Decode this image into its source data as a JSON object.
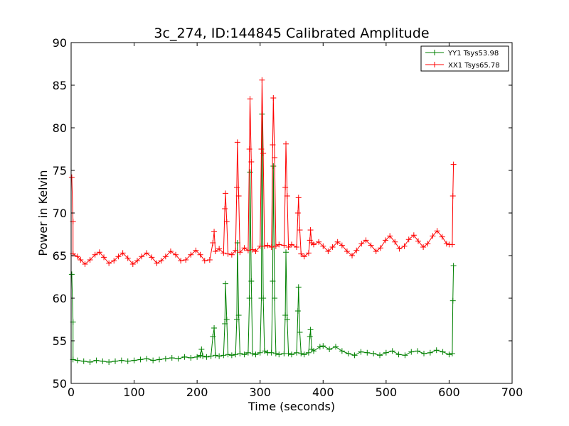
{
  "chart_data": {
    "type": "line",
    "title": "3c_274, ID:144845 Calibrated Amplitude",
    "xlabel": "Time (seconds)",
    "ylabel": "Power in Kelvin",
    "xlim": [
      0,
      700
    ],
    "ylim": [
      50,
      90
    ],
    "xticks": [
      0,
      100,
      200,
      300,
      400,
      500,
      600,
      700
    ],
    "yticks": [
      50,
      55,
      60,
      65,
      70,
      75,
      80,
      85,
      90
    ],
    "legend_position": "top-right",
    "marker": "+",
    "series": [
      {
        "name": "YY1 Tsys53.98",
        "color": "#008000",
        "points": [
          [
            1,
            62.8
          ],
          [
            3,
            57.2
          ],
          [
            3,
            52.8
          ],
          [
            10,
            52.7
          ],
          [
            20,
            52.6
          ],
          [
            30,
            52.5
          ],
          [
            40,
            52.7
          ],
          [
            50,
            52.6
          ],
          [
            60,
            52.5
          ],
          [
            70,
            52.6
          ],
          [
            80,
            52.7
          ],
          [
            90,
            52.6
          ],
          [
            100,
            52.7
          ],
          [
            110,
            52.8
          ],
          [
            120,
            52.9
          ],
          [
            130,
            52.7
          ],
          [
            140,
            52.8
          ],
          [
            150,
            52.9
          ],
          [
            160,
            53.0
          ],
          [
            170,
            52.9
          ],
          [
            180,
            53.1
          ],
          [
            190,
            53.0
          ],
          [
            200,
            53.1
          ],
          [
            205,
            53.3
          ],
          [
            207,
            54.0
          ],
          [
            209,
            53.2
          ],
          [
            215,
            53.1
          ],
          [
            222,
            53.2
          ],
          [
            225,
            55.5
          ],
          [
            227,
            56.5
          ],
          [
            229,
            53.3
          ],
          [
            235,
            53.2
          ],
          [
            242,
            53.3
          ],
          [
            244,
            57.0
          ],
          [
            245,
            61.7
          ],
          [
            247,
            57.5
          ],
          [
            249,
            53.4
          ],
          [
            255,
            53.3
          ],
          [
            261,
            53.4
          ],
          [
            263,
            57.5
          ],
          [
            264,
            66.5
          ],
          [
            266,
            58.0
          ],
          [
            268,
            53.5
          ],
          [
            275,
            53.4
          ],
          [
            281,
            53.6
          ],
          [
            283,
            60.0
          ],
          [
            284,
            74.8
          ],
          [
            286,
            62.0
          ],
          [
            288,
            53.5
          ],
          [
            293,
            53.4
          ],
          [
            300,
            53.6
          ],
          [
            302,
            60.0
          ],
          [
            303,
            81.6
          ],
          [
            305,
            60.0
          ],
          [
            307,
            53.8
          ],
          [
            312,
            53.6
          ],
          [
            318,
            53.6
          ],
          [
            320,
            62.0
          ],
          [
            321,
            75.5
          ],
          [
            323,
            60.0
          ],
          [
            325,
            53.5
          ],
          [
            330,
            53.4
          ],
          [
            338,
            53.5
          ],
          [
            340,
            58.0
          ],
          [
            341,
            65.4
          ],
          [
            343,
            57.5
          ],
          [
            345,
            53.5
          ],
          [
            350,
            53.4
          ],
          [
            358,
            53.6
          ],
          [
            360,
            58.5
          ],
          [
            361,
            61.3
          ],
          [
            363,
            56.0
          ],
          [
            365,
            53.5
          ],
          [
            370,
            53.4
          ],
          [
            377,
            53.6
          ],
          [
            379,
            55.5
          ],
          [
            380,
            56.3
          ],
          [
            382,
            54.0
          ],
          [
            385,
            53.8
          ],
          [
            395,
            54.3
          ],
          [
            400,
            54.4
          ],
          [
            410,
            54.0
          ],
          [
            420,
            54.3
          ],
          [
            430,
            53.8
          ],
          [
            440,
            53.5
          ],
          [
            450,
            53.3
          ],
          [
            460,
            53.7
          ],
          [
            470,
            53.6
          ],
          [
            480,
            53.5
          ],
          [
            490,
            53.3
          ],
          [
            500,
            53.6
          ],
          [
            510,
            53.8
          ],
          [
            520,
            53.4
          ],
          [
            530,
            53.3
          ],
          [
            540,
            53.7
          ],
          [
            550,
            53.8
          ],
          [
            560,
            53.5
          ],
          [
            570,
            53.6
          ],
          [
            580,
            53.9
          ],
          [
            590,
            53.7
          ],
          [
            600,
            53.4
          ],
          [
            605,
            53.5
          ],
          [
            606,
            59.7
          ],
          [
            607,
            63.8
          ]
        ]
      },
      {
        "name": "XX1 Tsys65.78",
        "color": "#ff0000",
        "points": [
          [
            1,
            74.2
          ],
          [
            3,
            69.0
          ],
          [
            3,
            65.2
          ],
          [
            10,
            64.9
          ],
          [
            15,
            64.5
          ],
          [
            22,
            64.0
          ],
          [
            30,
            64.5
          ],
          [
            38,
            65.1
          ],
          [
            45,
            65.4
          ],
          [
            52,
            64.8
          ],
          [
            60,
            64.1
          ],
          [
            68,
            64.4
          ],
          [
            75,
            64.9
          ],
          [
            82,
            65.3
          ],
          [
            90,
            64.7
          ],
          [
            98,
            64.0
          ],
          [
            105,
            64.4
          ],
          [
            112,
            64.9
          ],
          [
            120,
            65.3
          ],
          [
            128,
            64.8
          ],
          [
            136,
            64.1
          ],
          [
            143,
            64.4
          ],
          [
            150,
            64.9
          ],
          [
            158,
            65.5
          ],
          [
            166,
            65.1
          ],
          [
            174,
            64.4
          ],
          [
            182,
            64.5
          ],
          [
            190,
            65.1
          ],
          [
            198,
            65.6
          ],
          [
            205,
            65.1
          ],
          [
            212,
            64.4
          ],
          [
            220,
            64.5
          ],
          [
            225,
            66.5
          ],
          [
            227,
            67.8
          ],
          [
            229,
            65.5
          ],
          [
            235,
            65.8
          ],
          [
            242,
            65.3
          ],
          [
            244,
            70.5
          ],
          [
            245,
            72.3
          ],
          [
            247,
            69.0
          ],
          [
            249,
            65.2
          ],
          [
            255,
            65.1
          ],
          [
            261,
            65.6
          ],
          [
            263,
            73.0
          ],
          [
            264,
            78.3
          ],
          [
            266,
            72.0
          ],
          [
            268,
            65.4
          ],
          [
            275,
            65.9
          ],
          [
            281,
            65.6
          ],
          [
            283,
            77.5
          ],
          [
            284,
            83.4
          ],
          [
            286,
            76.0
          ],
          [
            288,
            65.7
          ],
          [
            293,
            65.5
          ],
          [
            300,
            66.1
          ],
          [
            302,
            77.5
          ],
          [
            303,
            85.6
          ],
          [
            305,
            77.0
          ],
          [
            307,
            66.1
          ],
          [
            312,
            66.2
          ],
          [
            318,
            66.0
          ],
          [
            320,
            78.0
          ],
          [
            321,
            83.5
          ],
          [
            323,
            76.5
          ],
          [
            325,
            66.1
          ],
          [
            330,
            66.3
          ],
          [
            338,
            66.2
          ],
          [
            340,
            73.0
          ],
          [
            341,
            78.1
          ],
          [
            343,
            72.0
          ],
          [
            345,
            66.0
          ],
          [
            350,
            66.3
          ],
          [
            358,
            66.0
          ],
          [
            360,
            70.0
          ],
          [
            361,
            71.8
          ],
          [
            363,
            68.0
          ],
          [
            365,
            65.2
          ],
          [
            370,
            64.9
          ],
          [
            377,
            65.3
          ],
          [
            379,
            66.8
          ],
          [
            380,
            68.0
          ],
          [
            382,
            66.5
          ],
          [
            385,
            66.3
          ],
          [
            393,
            66.6
          ],
          [
            400,
            66.1
          ],
          [
            408,
            65.5
          ],
          [
            415,
            66.0
          ],
          [
            423,
            66.6
          ],
          [
            430,
            66.2
          ],
          [
            438,
            65.5
          ],
          [
            446,
            65.0
          ],
          [
            453,
            65.6
          ],
          [
            461,
            66.4
          ],
          [
            468,
            66.8
          ],
          [
            476,
            66.2
          ],
          [
            484,
            65.5
          ],
          [
            491,
            65.9
          ],
          [
            499,
            66.8
          ],
          [
            506,
            67.3
          ],
          [
            514,
            66.6
          ],
          [
            521,
            65.8
          ],
          [
            529,
            66.1
          ],
          [
            536,
            66.9
          ],
          [
            544,
            67.4
          ],
          [
            551,
            66.7
          ],
          [
            559,
            66.0
          ],
          [
            566,
            66.4
          ],
          [
            574,
            67.3
          ],
          [
            581,
            67.9
          ],
          [
            589,
            67.2
          ],
          [
            596,
            66.4
          ],
          [
            600,
            66.3
          ],
          [
            605,
            66.3
          ],
          [
            606,
            72.0
          ],
          [
            607,
            75.7
          ]
        ]
      }
    ]
  }
}
